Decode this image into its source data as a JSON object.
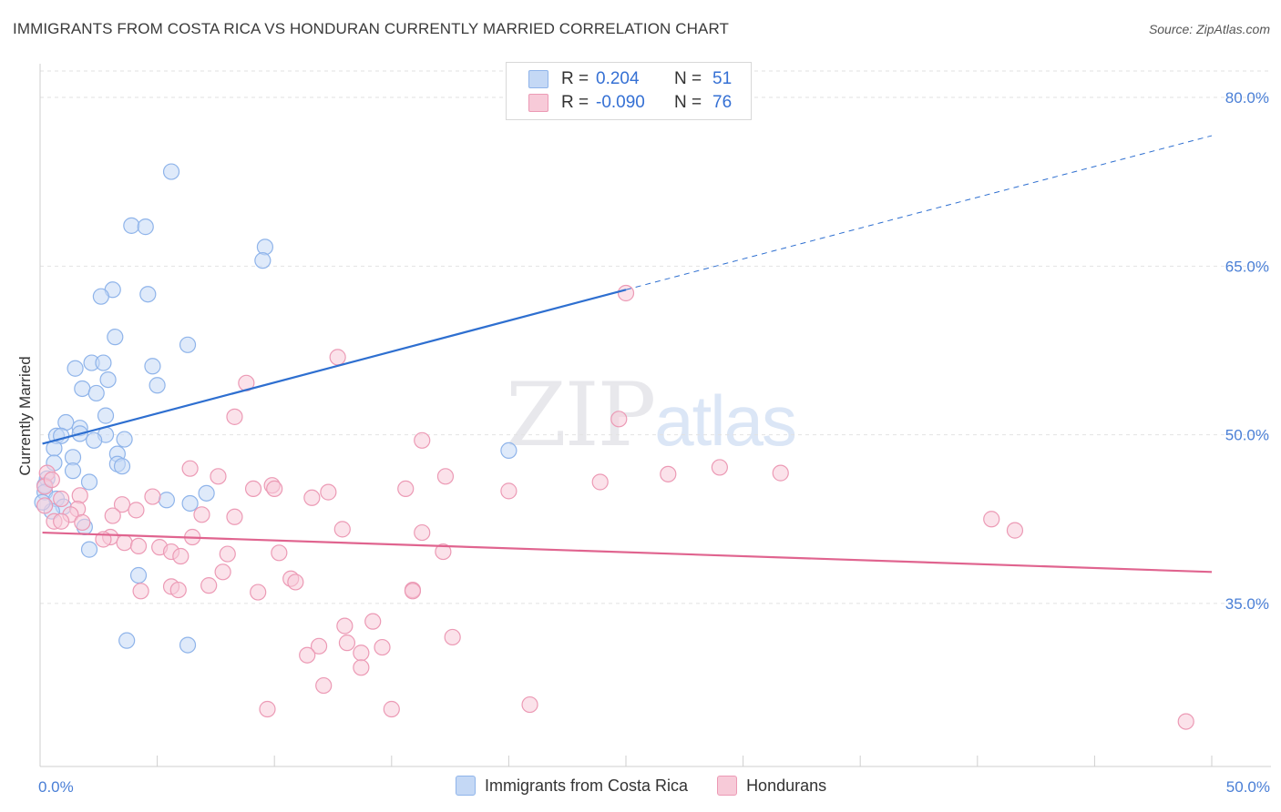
{
  "title": "IMMIGRANTS FROM COSTA RICA VS HONDURAN CURRENTLY MARRIED CORRELATION CHART",
  "source": "Source: ZipAtlas.com",
  "watermark": {
    "zip": "ZIP",
    "atlas": "atlas"
  },
  "legend": {
    "r_label": "R =",
    "n_label": "N =",
    "rows": [
      {
        "r": "0.204",
        "n": "51"
      },
      {
        "r": "-0.090",
        "n": "76"
      }
    ]
  },
  "chart_data": {
    "type": "scatter",
    "title": "IMMIGRANTS FROM COSTA RICA VS HONDURAN CURRENTLY MARRIED CORRELATION CHART",
    "xlabel": "",
    "ylabel": "Currently Married",
    "xlim": [
      0,
      50
    ],
    "ylim": [
      20.5,
      83
    ],
    "x_tick_labels": [
      "0.0%",
      "50.0%"
    ],
    "y_ticks": [
      35,
      50,
      65,
      80
    ],
    "y_tick_labels": [
      "35.0%",
      "50.0%",
      "65.0%",
      "80.0%"
    ],
    "grid": true,
    "legend_position": "top-center",
    "series": [
      {
        "name": "Immigrants from Costa Rica",
        "color": "#8fb4ea",
        "fill": "#c4d8f5",
        "r": 0.204,
        "n": 51,
        "trend": {
          "x0": 0.1,
          "y0": 49.2,
          "x1": 25.0,
          "y1": 62.9,
          "dash_to_x": 50.0,
          "dash_to_y": 76.6,
          "color": "#2e6fd0"
        },
        "points": [
          [
            5.6,
            73.4
          ],
          [
            3.9,
            68.6
          ],
          [
            4.5,
            68.5
          ],
          [
            9.6,
            66.7
          ],
          [
            9.5,
            65.5
          ],
          [
            3.1,
            62.9
          ],
          [
            2.6,
            62.3
          ],
          [
            4.6,
            62.5
          ],
          [
            3.2,
            58.7
          ],
          [
            6.3,
            58.0
          ],
          [
            1.5,
            55.9
          ],
          [
            2.2,
            56.4
          ],
          [
            2.7,
            56.4
          ],
          [
            4.8,
            56.1
          ],
          [
            2.9,
            54.9
          ],
          [
            5.0,
            54.4
          ],
          [
            1.8,
            54.1
          ],
          [
            2.4,
            53.7
          ],
          [
            2.8,
            51.7
          ],
          [
            1.1,
            51.1
          ],
          [
            0.7,
            49.9
          ],
          [
            0.9,
            49.9
          ],
          [
            1.7,
            50.6
          ],
          [
            1.7,
            50.1
          ],
          [
            2.8,
            50.0
          ],
          [
            2.3,
            49.5
          ],
          [
            3.6,
            49.6
          ],
          [
            0.6,
            48.8
          ],
          [
            1.4,
            48.0
          ],
          [
            0.6,
            47.5
          ],
          [
            3.3,
            48.3
          ],
          [
            3.3,
            47.4
          ],
          [
            3.5,
            47.2
          ],
          [
            1.4,
            46.8
          ],
          [
            0.3,
            46.1
          ],
          [
            0.2,
            45.5
          ],
          [
            2.1,
            45.8
          ],
          [
            0.2,
            44.9
          ],
          [
            7.1,
            44.8
          ],
          [
            0.7,
            44.3
          ],
          [
            1.0,
            43.6
          ],
          [
            5.4,
            44.2
          ],
          [
            6.4,
            43.9
          ],
          [
            0.5,
            43.2
          ],
          [
            1.9,
            41.8
          ],
          [
            2.1,
            39.8
          ],
          [
            4.2,
            37.5
          ],
          [
            3.7,
            31.7
          ],
          [
            6.3,
            31.3
          ],
          [
            20.0,
            48.6
          ],
          [
            0.1,
            44.0
          ]
        ]
      },
      {
        "name": "Hondurans",
        "color": "#ec9ab5",
        "fill": "#f7cad8",
        "r": -0.09,
        "n": 76,
        "trend": {
          "x0": 0.1,
          "y0": 41.3,
          "x1": 50.0,
          "y1": 37.8,
          "color": "#e0648f"
        },
        "points": [
          [
            25.0,
            62.6
          ],
          [
            12.7,
            56.9
          ],
          [
            8.8,
            54.6
          ],
          [
            8.3,
            51.6
          ],
          [
            24.7,
            51.4
          ],
          [
            16.3,
            49.5
          ],
          [
            29.0,
            47.1
          ],
          [
            6.4,
            47.0
          ],
          [
            31.6,
            46.6
          ],
          [
            0.3,
            46.6
          ],
          [
            7.6,
            46.3
          ],
          [
            17.3,
            46.3
          ],
          [
            9.9,
            45.5
          ],
          [
            10.0,
            45.2
          ],
          [
            9.1,
            45.2
          ],
          [
            15.6,
            45.2
          ],
          [
            23.9,
            45.8
          ],
          [
            20.0,
            45.0
          ],
          [
            12.3,
            44.9
          ],
          [
            11.6,
            44.4
          ],
          [
            1.7,
            44.6
          ],
          [
            4.8,
            44.5
          ],
          [
            0.9,
            44.3
          ],
          [
            3.5,
            43.8
          ],
          [
            0.2,
            43.7
          ],
          [
            1.6,
            43.4
          ],
          [
            4.1,
            43.3
          ],
          [
            6.9,
            42.9
          ],
          [
            1.3,
            42.9
          ],
          [
            3.1,
            42.8
          ],
          [
            8.3,
            42.7
          ],
          [
            0.6,
            42.3
          ],
          [
            0.9,
            42.3
          ],
          [
            1.8,
            42.2
          ],
          [
            12.9,
            41.6
          ],
          [
            16.3,
            41.3
          ],
          [
            6.5,
            40.9
          ],
          [
            3.0,
            40.9
          ],
          [
            2.7,
            40.7
          ],
          [
            3.6,
            40.4
          ],
          [
            4.2,
            40.1
          ],
          [
            5.1,
            40.0
          ],
          [
            5.6,
            39.6
          ],
          [
            8.0,
            39.4
          ],
          [
            17.2,
            39.6
          ],
          [
            10.2,
            39.5
          ],
          [
            6.0,
            39.2
          ],
          [
            7.8,
            37.8
          ],
          [
            10.7,
            37.2
          ],
          [
            10.9,
            36.9
          ],
          [
            5.6,
            36.5
          ],
          [
            7.2,
            36.6
          ],
          [
            5.9,
            36.2
          ],
          [
            4.3,
            36.1
          ],
          [
            9.3,
            36.0
          ],
          [
            15.9,
            36.2
          ],
          [
            15.9,
            36.1
          ],
          [
            14.2,
            33.4
          ],
          [
            13.0,
            33.0
          ],
          [
            17.6,
            32.0
          ],
          [
            11.9,
            31.2
          ],
          [
            13.1,
            31.5
          ],
          [
            14.6,
            31.1
          ],
          [
            11.4,
            30.4
          ],
          [
            13.7,
            30.6
          ],
          [
            13.7,
            29.3
          ],
          [
            12.1,
            27.7
          ],
          [
            20.9,
            26.0
          ],
          [
            9.7,
            25.6
          ],
          [
            15.0,
            25.6
          ],
          [
            48.9,
            24.5
          ],
          [
            40.6,
            42.5
          ],
          [
            41.6,
            41.5
          ],
          [
            26.8,
            46.5
          ],
          [
            0.2,
            45.4
          ],
          [
            0.5,
            46.0
          ]
        ]
      }
    ]
  },
  "bottom_legend": [
    {
      "label": "Immigrants from Costa Rica"
    },
    {
      "label": "Hondurans"
    }
  ],
  "colors": {
    "blue_fill": "#c4d8f5",
    "blue_stroke": "#8fb4ea",
    "pink_fill": "#f7cad8",
    "pink_stroke": "#ec9ab5",
    "tick_text": "#4a7fd6"
  }
}
